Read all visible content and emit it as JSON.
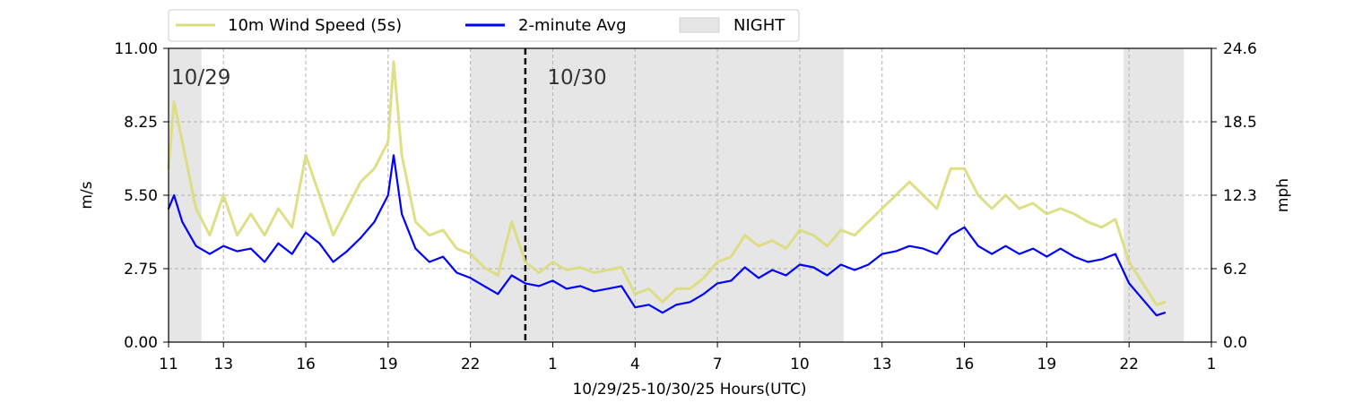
{
  "chart_data": {
    "type": "line",
    "xlabel": "10/29/25-10/30/25  Hours(UTC)",
    "ylabel_left": "m/s",
    "ylabel_right": "mph",
    "x_unit": "hours since 10/29/25 00:00 UTC",
    "xlim": [
      11,
      49
    ],
    "ylim": [
      0,
      11
    ],
    "y_ticks": [
      "0.00",
      "2.75",
      "5.50",
      "8.25",
      "11.00"
    ],
    "y_right_ticks": [
      "0.0",
      "6.2",
      "12.3",
      "18.5",
      "24.6"
    ],
    "x_ticks": [
      {
        "value": 11,
        "label": "11"
      },
      {
        "value": 13,
        "label": "13"
      },
      {
        "value": 16,
        "label": "16"
      },
      {
        "value": 19,
        "label": "19"
      },
      {
        "value": 22,
        "label": "22"
      },
      {
        "value": 25,
        "label": "1"
      },
      {
        "value": 28,
        "label": "4"
      },
      {
        "value": 31,
        "label": "7"
      },
      {
        "value": 34,
        "label": "10"
      },
      {
        "value": 37,
        "label": "13"
      },
      {
        "value": 40,
        "label": "16"
      },
      {
        "value": 43,
        "label": "19"
      },
      {
        "value": 46,
        "label": "22"
      },
      {
        "value": 49,
        "label": "1"
      }
    ],
    "grid": true,
    "legend_position": "top-left (above plot)",
    "legend": [
      "10m Wind Speed (5s)",
      "2-minute Avg",
      "NIGHT"
    ],
    "day_labels": [
      {
        "x": 11.1,
        "label": "10/29"
      },
      {
        "x": 24.8,
        "label": "10/30"
      }
    ],
    "midnight_line_x": 24,
    "night_periods": [
      [
        11,
        12.2
      ],
      [
        22.0,
        35.6
      ],
      [
        45.8,
        48.0
      ]
    ],
    "colors": {
      "raw": "#dcdc7a",
      "avg": "#0000ff",
      "night": "#e6e6e6",
      "midnight": "#000000"
    },
    "series": [
      {
        "name": "2-minute Avg",
        "x": [
          11,
          11.2,
          11.5,
          12,
          12.5,
          13,
          13.5,
          14,
          14.5,
          15,
          15.5,
          16,
          16.5,
          17,
          17.5,
          18,
          18.5,
          19,
          19.2,
          19.5,
          20,
          20.5,
          21,
          21.5,
          22,
          22.5,
          23,
          23.5,
          24,
          24.5,
          25,
          25.5,
          26,
          26.5,
          27,
          27.5,
          28,
          28.5,
          29,
          29.5,
          30,
          30.5,
          31,
          31.5,
          32,
          32.5,
          33,
          33.5,
          34,
          34.5,
          35,
          35.5,
          36,
          36.5,
          37,
          37.5,
          38,
          38.5,
          39,
          39.5,
          40,
          40.5,
          41,
          41.5,
          42,
          42.5,
          43,
          43.5,
          44,
          44.5,
          45,
          45.5,
          46,
          46.5,
          47,
          47.3
        ],
        "y": [
          5.0,
          5.5,
          4.5,
          3.6,
          3.3,
          3.6,
          3.4,
          3.5,
          3.0,
          3.7,
          3.3,
          4.1,
          3.7,
          3.0,
          3.4,
          3.9,
          4.5,
          5.5,
          7.0,
          4.8,
          3.5,
          3.0,
          3.2,
          2.6,
          2.4,
          2.1,
          1.8,
          2.5,
          2.2,
          2.1,
          2.3,
          2.0,
          2.1,
          1.9,
          2.0,
          2.1,
          1.3,
          1.4,
          1.1,
          1.4,
          1.5,
          1.8,
          2.2,
          2.3,
          2.8,
          2.4,
          2.7,
          2.5,
          2.9,
          2.8,
          2.5,
          2.9,
          2.7,
          2.9,
          3.3,
          3.4,
          3.6,
          3.5,
          3.3,
          4.0,
          4.3,
          3.6,
          3.3,
          3.6,
          3.3,
          3.5,
          3.2,
          3.5,
          3.2,
          3.0,
          3.1,
          3.3,
          2.2,
          1.6,
          1.0,
          1.1
        ]
      },
      {
        "name": "10m Wind Speed (5s)",
        "x": [
          11,
          11.2,
          11.5,
          12,
          12.5,
          13,
          13.5,
          14,
          14.5,
          15,
          15.5,
          16,
          16.5,
          17,
          17.5,
          18,
          18.5,
          19,
          19.2,
          19.5,
          20,
          20.5,
          21,
          21.5,
          22,
          22.5,
          23,
          23.5,
          24,
          24.5,
          25,
          25.5,
          26,
          26.5,
          27,
          27.5,
          28,
          28.5,
          29,
          29.5,
          30,
          30.5,
          31,
          31.5,
          32,
          32.5,
          33,
          33.5,
          34,
          34.5,
          35,
          35.5,
          36,
          36.5,
          37,
          37.5,
          38,
          38.5,
          39,
          39.5,
          40,
          40.5,
          41,
          41.5,
          42,
          42.5,
          43,
          43.5,
          44,
          44.5,
          45,
          45.5,
          46,
          46.5,
          47,
          47.3
        ],
        "y": [
          6.5,
          9.0,
          7.5,
          5.0,
          4.0,
          5.5,
          4.0,
          4.8,
          4.0,
          5.0,
          4.3,
          7.0,
          5.5,
          4.0,
          5.0,
          6.0,
          6.5,
          7.5,
          10.5,
          7.0,
          4.5,
          4.0,
          4.2,
          3.5,
          3.3,
          2.8,
          2.5,
          4.5,
          3.0,
          2.6,
          3.0,
          2.7,
          2.8,
          2.6,
          2.7,
          2.8,
          1.8,
          2.0,
          1.5,
          2.0,
          2.0,
          2.4,
          3.0,
          3.2,
          4.0,
          3.6,
          3.8,
          3.5,
          4.2,
          4.0,
          3.6,
          4.2,
          4.0,
          4.5,
          5.0,
          5.5,
          6.0,
          5.5,
          5.0,
          6.5,
          6.5,
          5.5,
          5.0,
          5.5,
          5.0,
          5.2,
          4.8,
          5.0,
          4.8,
          4.5,
          4.3,
          4.6,
          3.0,
          2.2,
          1.4,
          1.5
        ]
      }
    ]
  }
}
